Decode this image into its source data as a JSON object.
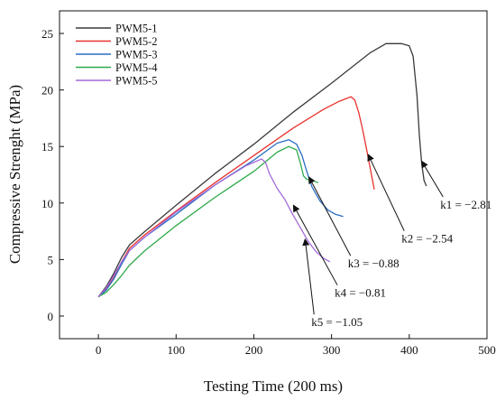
{
  "chart_data": {
    "type": "line",
    "title": "",
    "xlabel": "Testing Time (200 ms)",
    "ylabel": "Compressive Strenght (MPa)",
    "xlim": [
      -50,
      500
    ],
    "ylim": [
      -2,
      27
    ],
    "xticks": [
      0,
      100,
      200,
      300,
      400,
      500
    ],
    "yticks": [
      0,
      5,
      10,
      15,
      20,
      25
    ],
    "legend_position": "top-left",
    "grid": false,
    "series": [
      {
        "name": "PWM5-1",
        "color": "#3a3a3a",
        "points": [
          [
            0,
            1.7
          ],
          [
            10,
            2.6
          ],
          [
            20,
            3.8
          ],
          [
            30,
            5.2
          ],
          [
            40,
            6.3
          ],
          [
            60,
            7.5
          ],
          [
            100,
            9.8
          ],
          [
            150,
            12.6
          ],
          [
            200,
            15.2
          ],
          [
            250,
            18.0
          ],
          [
            300,
            20.6
          ],
          [
            350,
            23.3
          ],
          [
            370,
            24.1
          ],
          [
            390,
            24.1
          ],
          [
            400,
            23.9
          ],
          [
            405,
            23.0
          ],
          [
            410,
            19.5
          ],
          [
            413,
            16.0
          ],
          [
            416,
            13.5
          ],
          [
            419,
            12.0
          ],
          [
            422,
            11.5
          ]
        ]
      },
      {
        "name": "PWM5-2",
        "color": "#e8322e",
        "points": [
          [
            0,
            1.7
          ],
          [
            10,
            2.4
          ],
          [
            20,
            3.5
          ],
          [
            30,
            4.8
          ],
          [
            40,
            6.0
          ],
          [
            60,
            7.2
          ],
          [
            100,
            9.3
          ],
          [
            150,
            11.8
          ],
          [
            200,
            14.2
          ],
          [
            250,
            16.6
          ],
          [
            290,
            18.3
          ],
          [
            310,
            19.0
          ],
          [
            325,
            19.4
          ],
          [
            330,
            19.1
          ],
          [
            335,
            18.0
          ],
          [
            340,
            16.5
          ],
          [
            345,
            14.8
          ],
          [
            350,
            13.0
          ],
          [
            355,
            11.2
          ]
        ]
      },
      {
        "name": "PWM5-3",
        "color": "#2a6fc4",
        "points": [
          [
            0,
            1.7
          ],
          [
            10,
            2.3
          ],
          [
            20,
            3.3
          ],
          [
            30,
            4.6
          ],
          [
            40,
            5.8
          ],
          [
            60,
            7.0
          ],
          [
            100,
            9.0
          ],
          [
            150,
            11.6
          ],
          [
            200,
            13.8
          ],
          [
            230,
            15.3
          ],
          [
            245,
            15.6
          ],
          [
            255,
            15.2
          ],
          [
            262,
            14.2
          ],
          [
            268,
            12.8
          ],
          [
            275,
            11.4
          ],
          [
            285,
            10.2
          ],
          [
            295,
            9.4
          ],
          [
            305,
            9.0
          ],
          [
            315,
            8.8
          ]
        ]
      },
      {
        "name": "PWM5-4",
        "color": "#2eaa4a",
        "points": [
          [
            0,
            1.7
          ],
          [
            10,
            2.1
          ],
          [
            20,
            2.8
          ],
          [
            30,
            3.6
          ],
          [
            40,
            4.5
          ],
          [
            60,
            5.8
          ],
          [
            100,
            8.0
          ],
          [
            150,
            10.5
          ],
          [
            200,
            12.8
          ],
          [
            230,
            14.5
          ],
          [
            245,
            15.0
          ],
          [
            255,
            14.7
          ],
          [
            260,
            13.5
          ],
          [
            264,
            12.4
          ],
          [
            268,
            12.1
          ],
          [
            275,
            12.0
          ],
          [
            283,
            11.8
          ]
        ]
      },
      {
        "name": "PWM5-5",
        "color": "#a36ad9",
        "points": [
          [
            0,
            1.7
          ],
          [
            10,
            2.5
          ],
          [
            20,
            3.6
          ],
          [
            30,
            4.8
          ],
          [
            40,
            5.8
          ],
          [
            60,
            7.0
          ],
          [
            100,
            9.2
          ],
          [
            150,
            11.6
          ],
          [
            190,
            13.3
          ],
          [
            210,
            13.9
          ],
          [
            215,
            13.6
          ],
          [
            220,
            12.6
          ],
          [
            230,
            11.3
          ],
          [
            240,
            10.3
          ],
          [
            250,
            9.0
          ],
          [
            260,
            7.8
          ],
          [
            270,
            6.6
          ],
          [
            280,
            5.7
          ],
          [
            290,
            5.1
          ],
          [
            298,
            4.8
          ]
        ]
      }
    ],
    "annotations": [
      {
        "text": "k1 = −2.81",
        "target": [
          416,
          13.7
        ],
        "label_at": [
          440,
          9.5
        ]
      },
      {
        "text": "k2 = −2.54",
        "target": [
          347,
          14.3
        ],
        "label_at": [
          390,
          6.5
        ]
      },
      {
        "text": "k3 = −0.88",
        "target": [
          271,
          12.3
        ],
        "label_at": [
          321,
          4.3
        ]
      },
      {
        "text": "k4 = −0.81",
        "target": [
          251,
          9.8
        ],
        "label_at": [
          304,
          1.7
        ]
      },
      {
        "text": "k5 = −1.05",
        "target": [
          266,
          6.8
        ],
        "label_at": [
          274,
          -0.9
        ]
      }
    ]
  }
}
